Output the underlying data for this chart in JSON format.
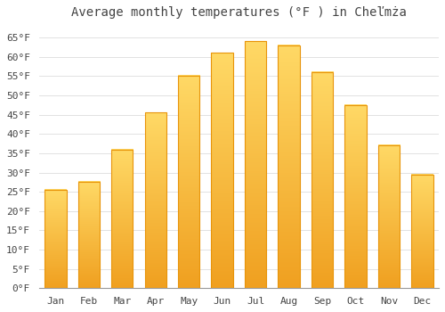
{
  "title": "Average monthly temperatures (°F ) in Cheľmża",
  "months": [
    "Jan",
    "Feb",
    "Mar",
    "Apr",
    "May",
    "Jun",
    "Jul",
    "Aug",
    "Sep",
    "Oct",
    "Nov",
    "Dec"
  ],
  "values": [
    25.5,
    27.5,
    36.0,
    45.5,
    55.0,
    61.0,
    64.0,
    63.0,
    56.0,
    47.5,
    37.0,
    29.5
  ],
  "bar_color_top": "#FFD966",
  "bar_color_bottom": "#F0A020",
  "bar_edge_color": "#E8940A",
  "background_color": "#FFFFFF",
  "grid_color": "#DDDDDD",
  "text_color": "#444444",
  "ylim": [
    0,
    68
  ],
  "yticks": [
    0,
    5,
    10,
    15,
    20,
    25,
    30,
    35,
    40,
    45,
    50,
    55,
    60,
    65
  ],
  "title_fontsize": 10,
  "tick_fontsize": 8,
  "font_family": "monospace"
}
